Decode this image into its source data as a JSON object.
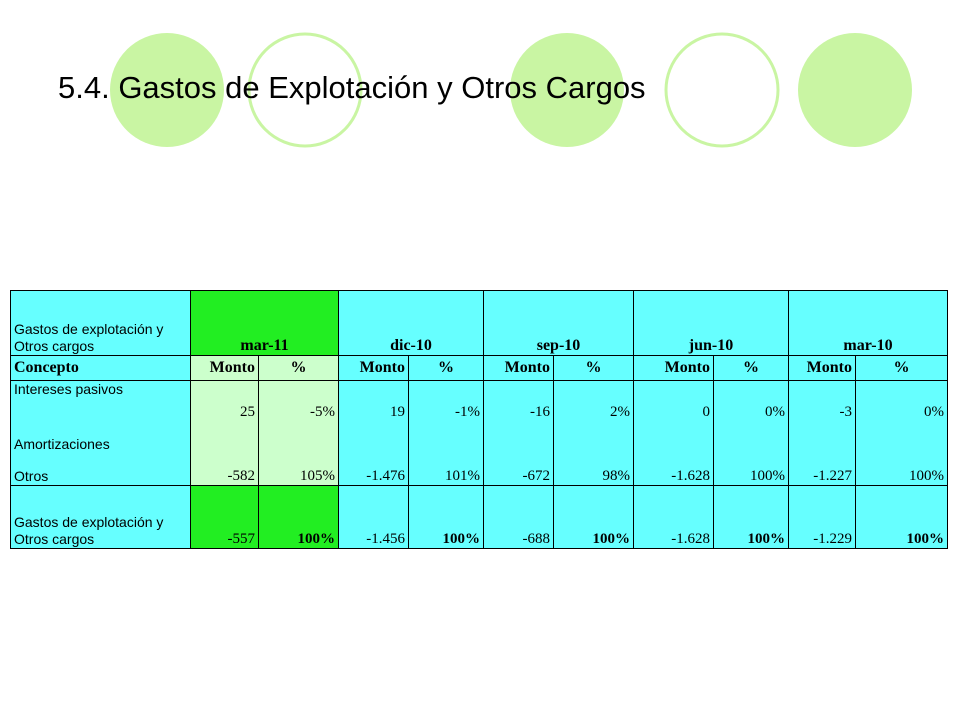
{
  "title": "5.4. Gastos de Explotación y Otros Cargos",
  "table": {
    "corner": "Gastos de explotación y Otros cargos",
    "periods": [
      "mar-11",
      "dic-10",
      "sep-10",
      "jun-10",
      "mar-10"
    ],
    "concept_header": "Concepto",
    "sub_headers": [
      "Monto",
      "%"
    ],
    "rows": [
      {
        "label": "Intereses pasivos",
        "cells": [
          "25",
          "-5%",
          "19",
          "-1%",
          "-16",
          "2%",
          "0",
          "0%",
          "-3",
          "0%"
        ]
      },
      {
        "label": "Amortizaciones"
      },
      {
        "label": "Otros",
        "cells": [
          "-582",
          "105%",
          "-1.476",
          "101%",
          "-672",
          "98%",
          "-1.628",
          "100%",
          "-1.227",
          "100%"
        ]
      }
    ],
    "total": {
      "label": "Gastos de explotación y Otros cargos",
      "cells": [
        "-557",
        "100%",
        "-1.456",
        "100%",
        "-688",
        "100%",
        "-1.628",
        "100%",
        "-1.229",
        "100%"
      ]
    }
  }
}
